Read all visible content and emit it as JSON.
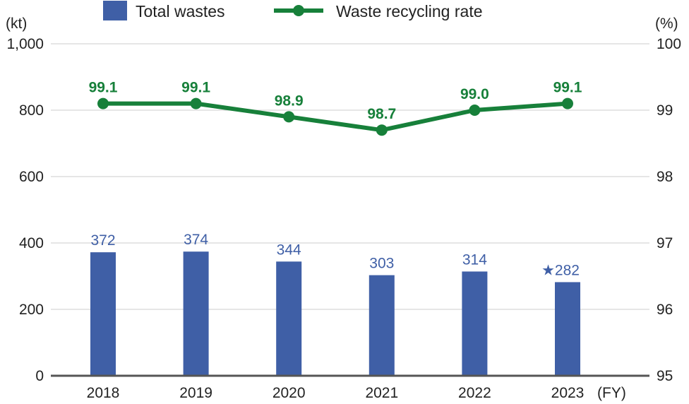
{
  "chart_data": {
    "type": "bar+line",
    "categories": [
      "2018",
      "2019",
      "2020",
      "2021",
      "2022",
      "2023"
    ],
    "x_unit": "(FY)",
    "series": [
      {
        "name": "Total wastes",
        "type": "bar",
        "axis": "left",
        "values": [
          372,
          374,
          344,
          303,
          314,
          282
        ],
        "labels": [
          "372",
          "374",
          "344",
          "303",
          "314",
          "★282"
        ]
      },
      {
        "name": "Waste recycling rate",
        "type": "line",
        "axis": "right",
        "values": [
          99.1,
          99.1,
          98.9,
          98.7,
          99.0,
          99.1
        ],
        "labels": [
          "99.1",
          "99.1",
          "98.9",
          "98.7",
          "99.0",
          "99.1"
        ]
      }
    ],
    "y_left": {
      "unit": "(kt)",
      "range": [
        0,
        1000
      ],
      "ticks": [
        0,
        200,
        400,
        600,
        800,
        1000
      ],
      "tick_labels": [
        "0",
        "200",
        "400",
        "600",
        "800",
        "1,000"
      ]
    },
    "y_right": {
      "unit": "(%)",
      "range": [
        95,
        100
      ],
      "ticks": [
        95,
        96,
        97,
        98,
        99,
        100
      ],
      "tick_labels": [
        "95",
        "96",
        "97",
        "98",
        "99",
        "100"
      ]
    },
    "grid": true,
    "legend_position": "top",
    "colors": {
      "bar": "#3f5fa6",
      "line": "#17803a",
      "grid": "#cccccc",
      "axis": "#555555"
    }
  }
}
